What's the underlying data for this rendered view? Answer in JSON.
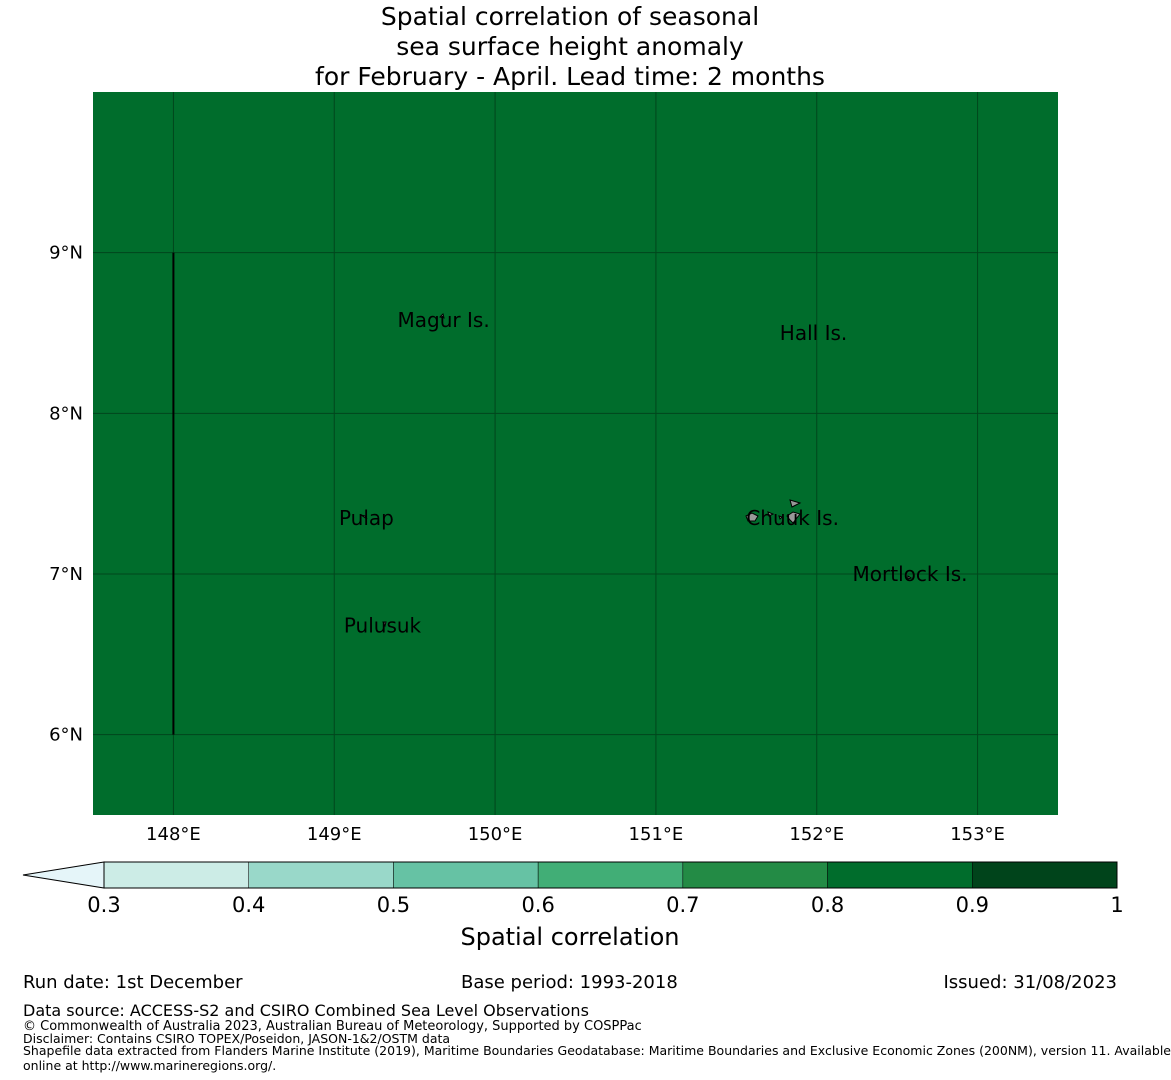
{
  "title": {
    "line1": "Spatial correlation of seasonal",
    "line2": "sea surface height anomaly",
    "line3": "for February - April. Lead time: 2 months"
  },
  "map": {
    "lon_range": [
      147.5,
      153.5
    ],
    "lat_range": [
      5.5,
      10.0
    ],
    "field_value": 0.85,
    "lon_ticks": [
      {
        "value": 148,
        "label": "148°E"
      },
      {
        "value": 149,
        "label": "149°E"
      },
      {
        "value": 150,
        "label": "150°E"
      },
      {
        "value": 151,
        "label": "151°E"
      },
      {
        "value": 152,
        "label": "152°E"
      },
      {
        "value": 153,
        "label": "153°E"
      }
    ],
    "lat_ticks": [
      {
        "value": 9,
        "label": "9°N"
      },
      {
        "value": 8,
        "label": "8°N"
      },
      {
        "value": 7,
        "label": "7°N"
      },
      {
        "value": 6,
        "label": "6°N"
      }
    ],
    "boundary_line": {
      "lon": 148.0,
      "lat_from": 6.0,
      "lat_to": 9.0
    },
    "places": [
      {
        "name": "Magur Is.",
        "lon": 149.68,
        "lat": 8.58
      },
      {
        "name": "Hall Is.",
        "lon": 151.98,
        "lat": 8.5
      },
      {
        "name": "Pulap",
        "lon": 149.2,
        "lat": 7.35
      },
      {
        "name": "Chuuk Is.",
        "lon": 151.85,
        "lat": 7.35
      },
      {
        "name": "Mortlock Is.",
        "lon": 152.58,
        "lat": 7.0
      },
      {
        "name": "Pulusuk",
        "lon": 149.3,
        "lat": 6.68
      }
    ]
  },
  "colorbar": {
    "label": "Spatial correlation",
    "bounds": [
      0.3,
      0.4,
      0.5,
      0.6,
      0.7,
      0.8,
      0.9,
      1.0
    ],
    "tick_labels": [
      "0.3",
      "0.4",
      "0.5",
      "0.6",
      "0.7",
      "0.8",
      "0.9",
      "1"
    ],
    "colors": [
      "#ccece6",
      "#99d8c9",
      "#66c2a4",
      "#41ae76",
      "#238b45",
      "#006d2c",
      "#00441b"
    ],
    "under_color": "#e5f5f9"
  },
  "footer": {
    "run_date": "Run date: 1st December",
    "base_period": "Base period: 1993-2018",
    "issued": "Issued: 31/08/2023",
    "data_source": "Data source: ACCESS-S2 and CSIRO Combined Sea Level Observations",
    "copyright": "© Commonwealth of Australia 2023, Australian Bureau of Meteorology, Supported by COSPPac",
    "disclaimer": "Disclaimer: Contains CSIRO TOPEX/Poseidon, JASON-1&2/OSTM data",
    "shapefile_line1": "Shapefile data extracted from Flanders Marine Institute (2019), Maritime Boundaries Geodatabase: Maritime Boundaries and Exclusive Economic Zones (200NM), version 11. Available",
    "shapefile_line2": "online at http://www.marineregions.org/."
  }
}
